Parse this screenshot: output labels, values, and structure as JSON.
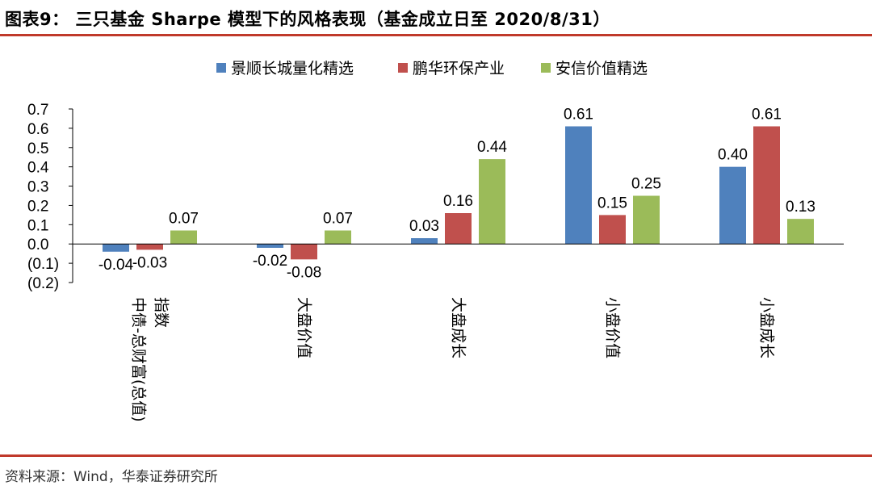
{
  "header": {
    "title": "图表9：  三只基金 Sharpe 模型下的风格表现（基金成立日至 2020/8/31）",
    "rule_color": "#c0392b"
  },
  "footer": {
    "source": "资料来源：Wind，华泰证券研究所"
  },
  "chart_data": {
    "type": "bar",
    "categories": [
      [
        "中债-总财富(总值)",
        "指数"
      ],
      [
        "大盘价值"
      ],
      [
        "大盘成长"
      ],
      [
        "小盘价值"
      ],
      [
        "小盘成长"
      ]
    ],
    "series": [
      {
        "name": "景顺长城量化精选",
        "color": "#4f81bd",
        "values": [
          -0.04,
          -0.02,
          0.03,
          0.61,
          0.4
        ],
        "labels": [
          "-0.04",
          "-0.02",
          "0.03",
          "0.61",
          "0.40"
        ]
      },
      {
        "name": "鹏华环保产业",
        "color": "#c0504d",
        "values": [
          -0.03,
          -0.08,
          0.16,
          0.15,
          0.61
        ],
        "labels": [
          "-0.03",
          "-0.08",
          "0.16",
          "0.15",
          "0.61"
        ]
      },
      {
        "name": "安信价值精选",
        "color": "#9bbb59",
        "values": [
          0.07,
          0.07,
          0.44,
          0.25,
          0.13
        ],
        "labels": [
          "0.07",
          "0.07",
          "0.44",
          "0.25",
          "0.13"
        ]
      }
    ],
    "ylim": [
      -0.2,
      0.7
    ],
    "yticks": [
      0.7,
      0.6,
      0.5,
      0.4,
      0.3,
      0.2,
      0.1,
      0.0,
      -0.1,
      -0.2
    ],
    "ytick_labels": [
      "0.7",
      "0.6",
      "0.5",
      "0.4",
      "0.3",
      "0.2",
      "0.1",
      "0.0",
      "(0.1)",
      "(0.2)"
    ],
    "legend_position": "top",
    "grid": false
  }
}
